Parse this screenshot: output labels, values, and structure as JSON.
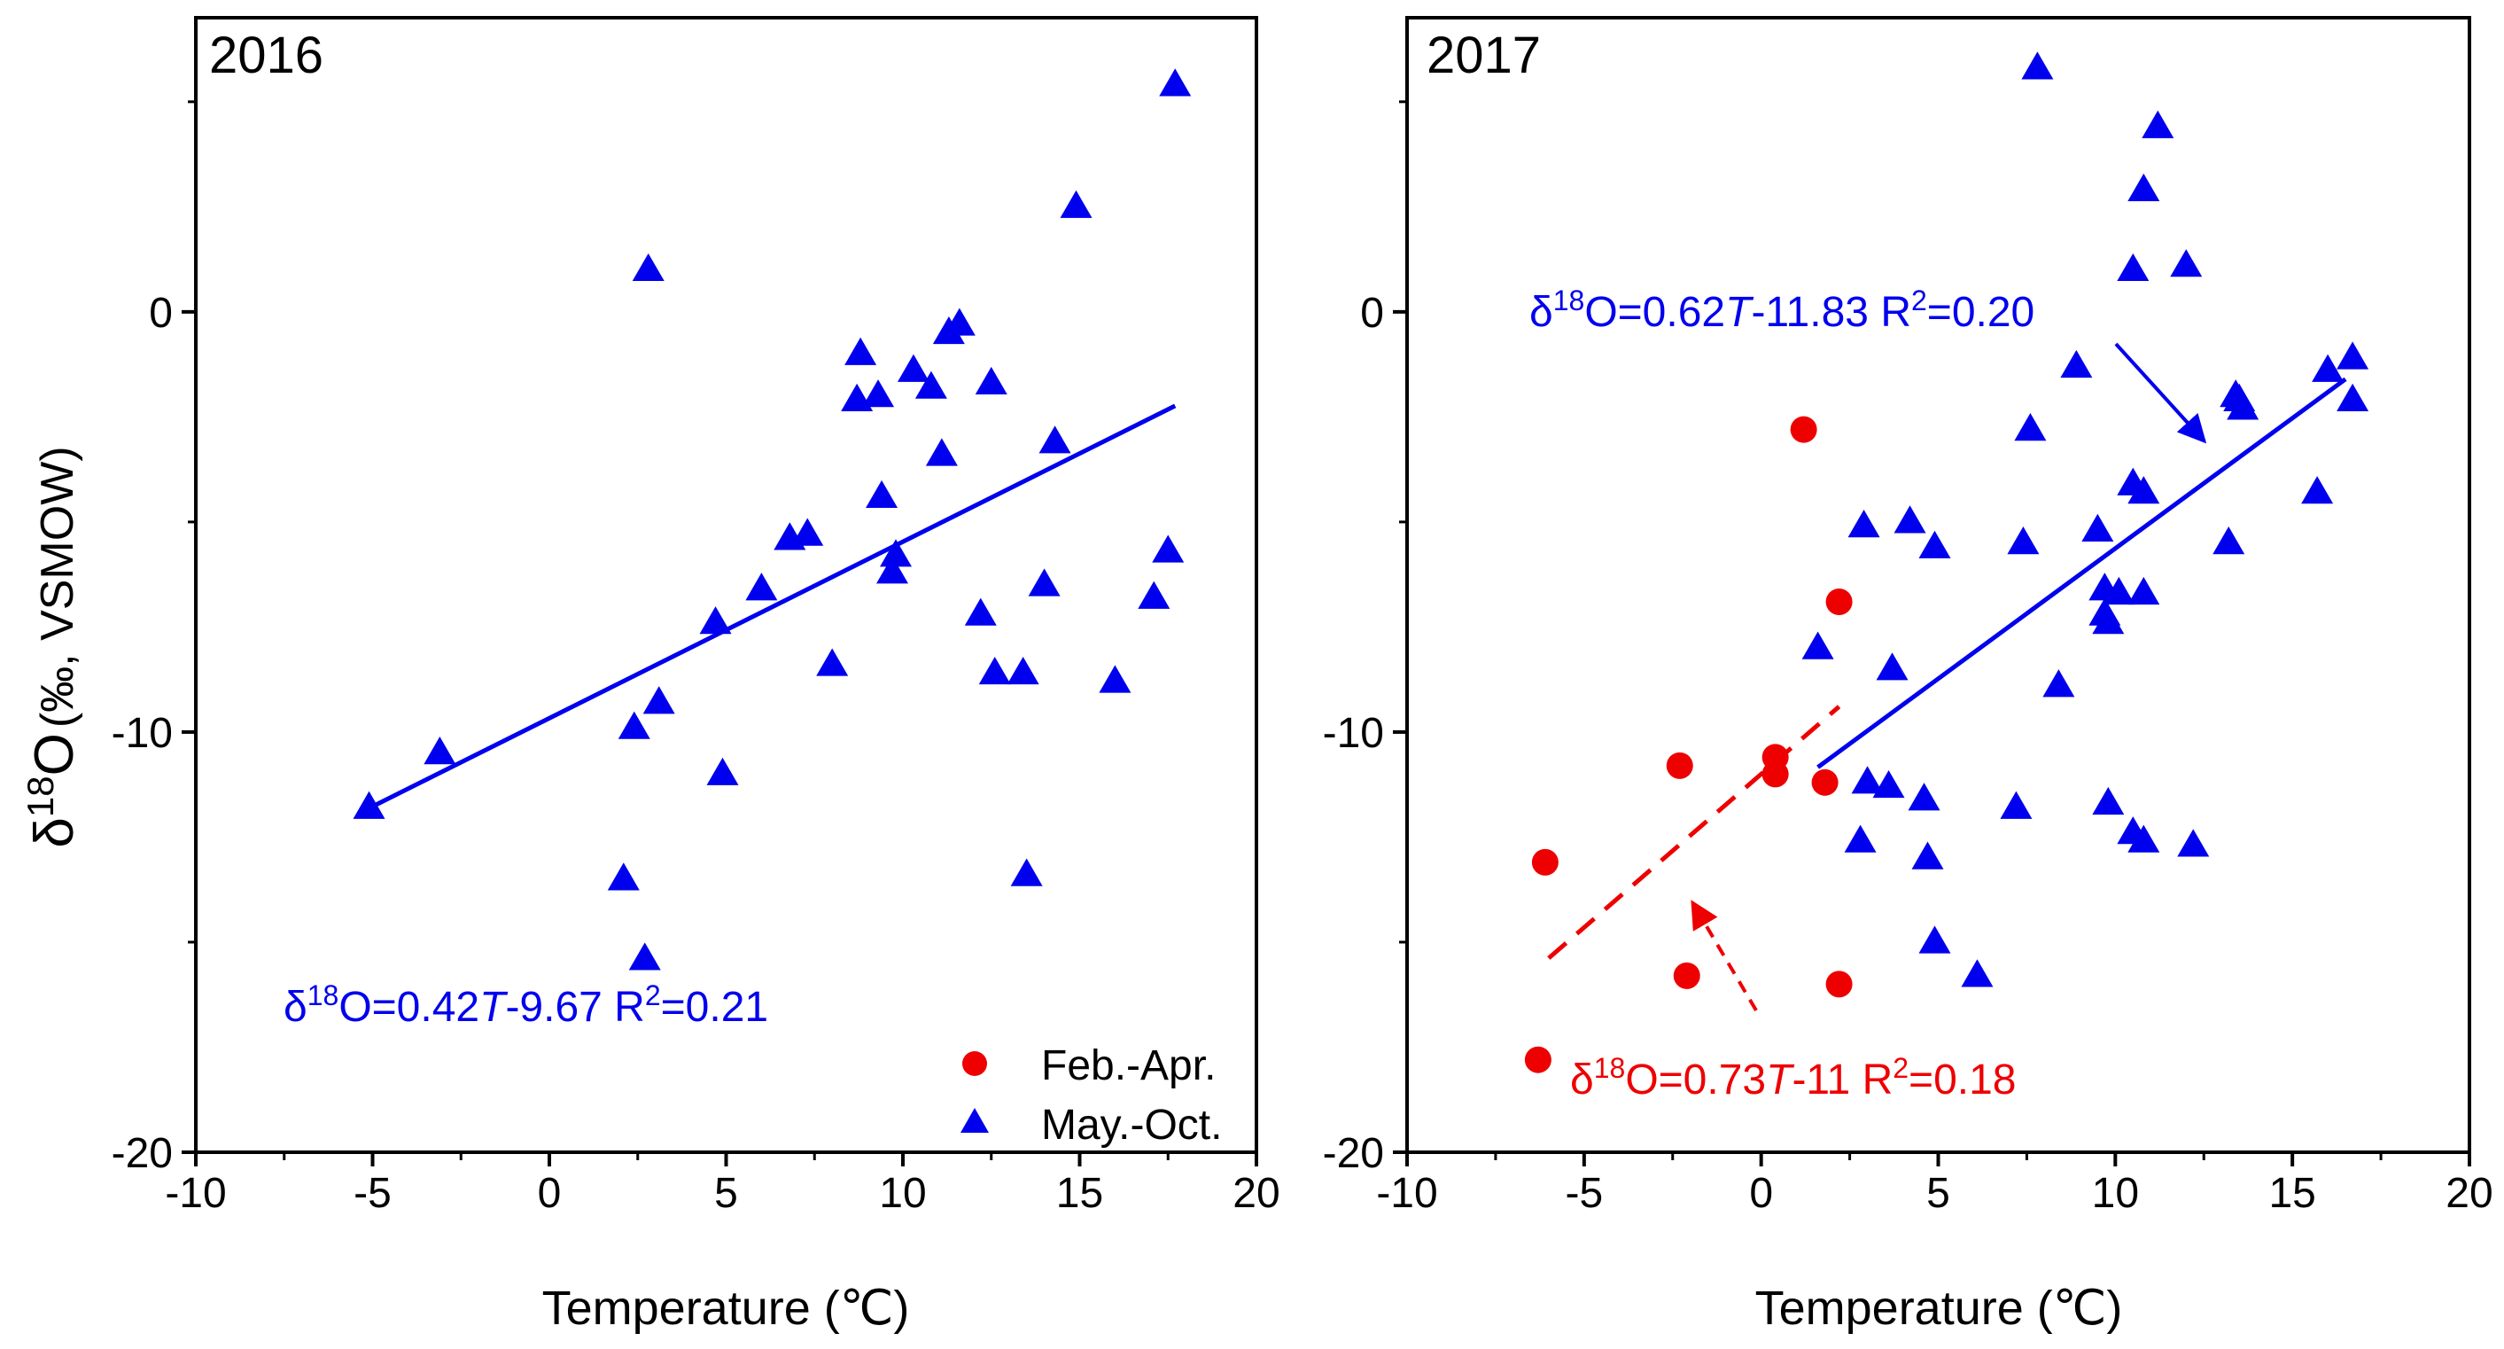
{
  "y_axis_label": {
    "delta": "δ",
    "sup": "18",
    "o": "O",
    "units": "(‰, VSMOW)"
  },
  "legend": {
    "feb_apr": "Feb.-Apr.",
    "may_oct": "May.-Oct."
  },
  "colors": {
    "blue": "#0000ee",
    "red": "#ee0000",
    "axis": "#000000"
  },
  "chart_data": [
    {
      "type": "scatter",
      "panel_label": "2016",
      "xlabel": "Temperature (℃)",
      "xlim": [
        -10,
        20
      ],
      "ylim": [
        -20,
        7
      ],
      "x_ticks": [
        -10,
        -5,
        0,
        5,
        10,
        15,
        20
      ],
      "y_ticks": [
        -20,
        -10,
        0
      ],
      "series": [
        {
          "name": "May.-Oct.",
          "marker": "triangle",
          "color": "#0000ee",
          "points": [
            [
              -5.1,
              -11.8
            ],
            [
              -3.1,
              -10.5
            ],
            [
              2.1,
              -13.5
            ],
            [
              2.4,
              -9.9
            ],
            [
              2.7,
              -15.4
            ],
            [
              2.8,
              1.0
            ],
            [
              3.1,
              -9.3
            ],
            [
              4.7,
              -7.4
            ],
            [
              4.9,
              -11.0
            ],
            [
              6.0,
              -6.6
            ],
            [
              6.8,
              -5.4
            ],
            [
              7.3,
              -5.3
            ],
            [
              8.0,
              -8.4
            ],
            [
              8.7,
              -2.1
            ],
            [
              8.8,
              -1.0
            ],
            [
              9.3,
              -2.0
            ],
            [
              9.4,
              -4.4
            ],
            [
              9.7,
              -6.2
            ],
            [
              9.8,
              -5.8
            ],
            [
              10.3,
              -1.4
            ],
            [
              10.8,
              -1.8
            ],
            [
              11.1,
              -3.4
            ],
            [
              11.3,
              -0.5
            ],
            [
              11.6,
              -0.3
            ],
            [
              12.2,
              -7.2
            ],
            [
              12.5,
              -1.7
            ],
            [
              12.6,
              -8.6
            ],
            [
              13.4,
              -8.6
            ],
            [
              13.5,
              -13.4
            ],
            [
              14.0,
              -6.5
            ],
            [
              14.3,
              -3.1
            ],
            [
              14.9,
              2.5
            ],
            [
              16.0,
              -8.8
            ],
            [
              17.1,
              -6.8
            ],
            [
              17.5,
              -5.7
            ],
            [
              17.7,
              5.4
            ]
          ]
        }
      ],
      "fits": [
        {
          "name": "2016 fit",
          "color": "#0000ee",
          "dashed": false,
          "slope": 0.42,
          "intercept": -9.67,
          "x_range": [
            -5.1,
            17.7
          ],
          "label_pre": "δ",
          "label_sup1": "18",
          "label_mid": "O=0.42",
          "label_t": "T",
          "label_post": "-9.67 R",
          "label_sup2": "2",
          "label_end": "=0.21"
        }
      ]
    },
    {
      "type": "scatter",
      "panel_label": "2017",
      "xlabel": "Temperature (℃)",
      "xlim": [
        -10,
        20
      ],
      "ylim": [
        -20,
        7
      ],
      "x_ticks": [
        -10,
        -5,
        0,
        5,
        10,
        15,
        20
      ],
      "y_ticks": [
        -20,
        -10,
        0
      ],
      "series": [
        {
          "name": "Feb.-Apr.",
          "marker": "circle",
          "color": "#ee0000",
          "points": [
            [
              -6.3,
              -17.8
            ],
            [
              -6.1,
              -13.1
            ],
            [
              -2.3,
              -10.8
            ],
            [
              -2.1,
              -15.8
            ],
            [
              0.4,
              -10.6
            ],
            [
              0.4,
              -11.0
            ],
            [
              1.2,
              -2.8
            ],
            [
              1.8,
              -11.2
            ],
            [
              2.2,
              -6.9
            ],
            [
              2.2,
              -16.0
            ]
          ]
        },
        {
          "name": "May.-Oct.",
          "marker": "triangle",
          "color": "#0000ee",
          "points": [
            [
              1.6,
              -8.0
            ],
            [
              2.8,
              -12.6
            ],
            [
              2.9,
              -5.1
            ],
            [
              3.0,
              -11.2
            ],
            [
              3.6,
              -11.3
            ],
            [
              3.7,
              -8.5
            ],
            [
              4.2,
              -5.0
            ],
            [
              4.6,
              -11.6
            ],
            [
              4.7,
              -13.0
            ],
            [
              4.9,
              -5.6
            ],
            [
              4.9,
              -15.0
            ],
            [
              6.1,
              -15.8
            ],
            [
              7.2,
              -11.8
            ],
            [
              7.4,
              -5.5
            ],
            [
              7.6,
              -2.8
            ],
            [
              7.8,
              5.8
            ],
            [
              8.4,
              -8.9
            ],
            [
              8.9,
              -1.3
            ],
            [
              9.5,
              -5.2
            ],
            [
              9.7,
              -6.6
            ],
            [
              9.7,
              -7.2
            ],
            [
              9.8,
              -7.4
            ],
            [
              9.8,
              -11.7
            ],
            [
              10.1,
              -6.7
            ],
            [
              10.5,
              -4.1
            ],
            [
              10.5,
              1.0
            ],
            [
              10.5,
              -12.4
            ],
            [
              10.8,
              -4.3
            ],
            [
              10.8,
              -6.7
            ],
            [
              10.8,
              2.9
            ],
            [
              10.8,
              -12.6
            ],
            [
              11.2,
              4.4
            ],
            [
              12.0,
              1.1
            ],
            [
              12.2,
              -12.7
            ],
            [
              13.2,
              -5.5
            ],
            [
              13.4,
              -2.0
            ],
            [
              13.5,
              -2.1
            ],
            [
              13.6,
              -2.3
            ],
            [
              15.7,
              -4.3
            ],
            [
              16.0,
              -1.4
            ],
            [
              16.7,
              -1.1
            ],
            [
              16.7,
              -2.1
            ]
          ]
        }
      ],
      "fits": [
        {
          "name": "Feb.-Apr. fit",
          "color": "#ee0000",
          "dashed": true,
          "slope": 0.73,
          "intercept": -11,
          "x_range": [
            -6.0,
            2.2
          ],
          "label_pre": "δ",
          "label_sup1": "18",
          "label_mid": "O=0.73",
          "label_t": "T",
          "label_post": "-11 R",
          "label_sup2": "2",
          "label_end": "=0.18"
        },
        {
          "name": "May.-Oct. fit",
          "color": "#0000ee",
          "dashed": false,
          "slope": 0.62,
          "intercept": -11.83,
          "x_range": [
            1.6,
            16.5
          ],
          "label_pre": "δ",
          "label_sup1": "18",
          "label_mid": "O=0.62",
          "label_t": "T",
          "label_post": "-11.83 R",
          "label_sup2": "2",
          "label_end": "=0.20"
        }
      ]
    }
  ]
}
